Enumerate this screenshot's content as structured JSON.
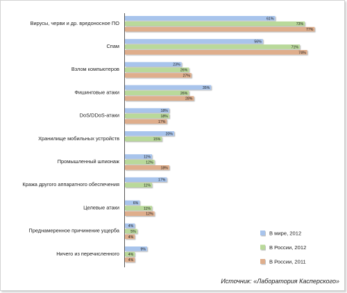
{
  "chart_data": {
    "type": "bar",
    "orientation": "horizontal",
    "categories": [
      "Вирусы, черви и др. вредоносное ПО",
      "Спам",
      "Взлом компьютеров",
      "Фишинговые атаки",
      "DoS/DDoS-атаки",
      "Хранилище мобильных устройств",
      "Промышленный шпионаж",
      "Кража другого аппаратного обеспечения",
      "Целевые атаки",
      "Преднамеренное причинение ущерба",
      "Ничего из перечисленного"
    ],
    "series": [
      {
        "name": "В мире, 2012",
        "color": "#a8c4ec",
        "values": [
          61,
          56,
          23,
          35,
          18,
          20,
          11,
          17,
          6,
          4,
          9
        ],
        "labels": [
          "61%",
          "56%",
          "23%",
          "35%",
          "18%",
          "20%",
          "11%",
          "17%",
          "6%",
          "4%",
          "9%"
        ]
      },
      {
        "name": "В России, 2012",
        "color": "#b9d99a",
        "values": [
          73,
          71,
          26,
          26,
          18,
          15,
          12,
          11,
          11,
          5,
          4
        ],
        "labels": [
          "73%",
          "71%",
          "26%",
          "26%",
          "18%",
          "15%",
          "12%",
          "11%",
          "11%",
          "5%",
          "4%"
        ]
      },
      {
        "name": "В России, 2011",
        "color": "#dfae8c",
        "values": [
          77,
          74,
          27,
          28,
          17,
          null,
          18,
          null,
          12,
          4,
          4
        ],
        "labels": [
          "77%",
          "74%",
          "27%",
          "28%",
          "17%",
          "",
          "18%",
          "",
          "12%",
          "4%",
          "4%"
        ]
      }
    ],
    "xlim": [
      0,
      100
    ],
    "grid": false,
    "legend_position": "bottom-right",
    "source": "Источник: «Лаборатория Касперского»"
  }
}
